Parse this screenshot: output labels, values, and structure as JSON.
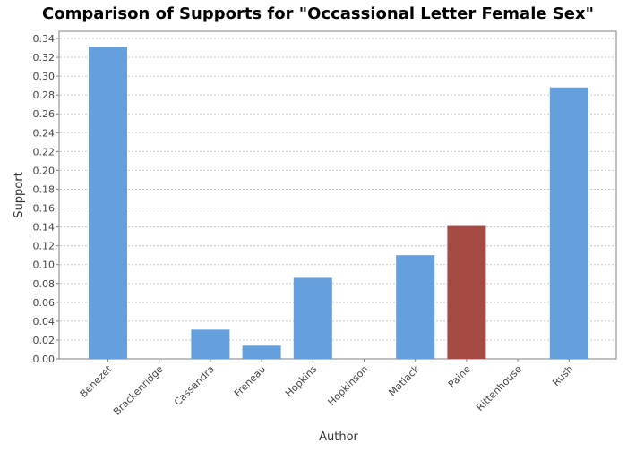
{
  "chart_data": {
    "type": "bar",
    "title": "Comparison of Supports for \"Occassional Letter Female Sex\"",
    "xlabel": "Author",
    "ylabel": "Support",
    "ylim": [
      0,
      0.3476
    ],
    "yticks": [
      "0.00",
      "0.02",
      "0.04",
      "0.06",
      "0.08",
      "0.10",
      "0.12",
      "0.14",
      "0.16",
      "0.18",
      "0.20",
      "0.22",
      "0.24",
      "0.26",
      "0.28",
      "0.30",
      "0.32",
      "0.34"
    ],
    "categories": [
      "Benezet",
      "Brackenridge",
      "Cassandra",
      "Freneau",
      "Hopkins",
      "Hopkinson",
      "Matlack",
      "Paine",
      "Rittenhouse",
      "Rush"
    ],
    "values": [
      0.331,
      0,
      0.031,
      0.014,
      0.086,
      0,
      0.11,
      0.141,
      0,
      0.288
    ],
    "highlight": "Paine",
    "grid": true,
    "colors": {
      "bar": "#65a0de",
      "highlight": "#a64a44",
      "grid": "#c8c8c8"
    }
  }
}
